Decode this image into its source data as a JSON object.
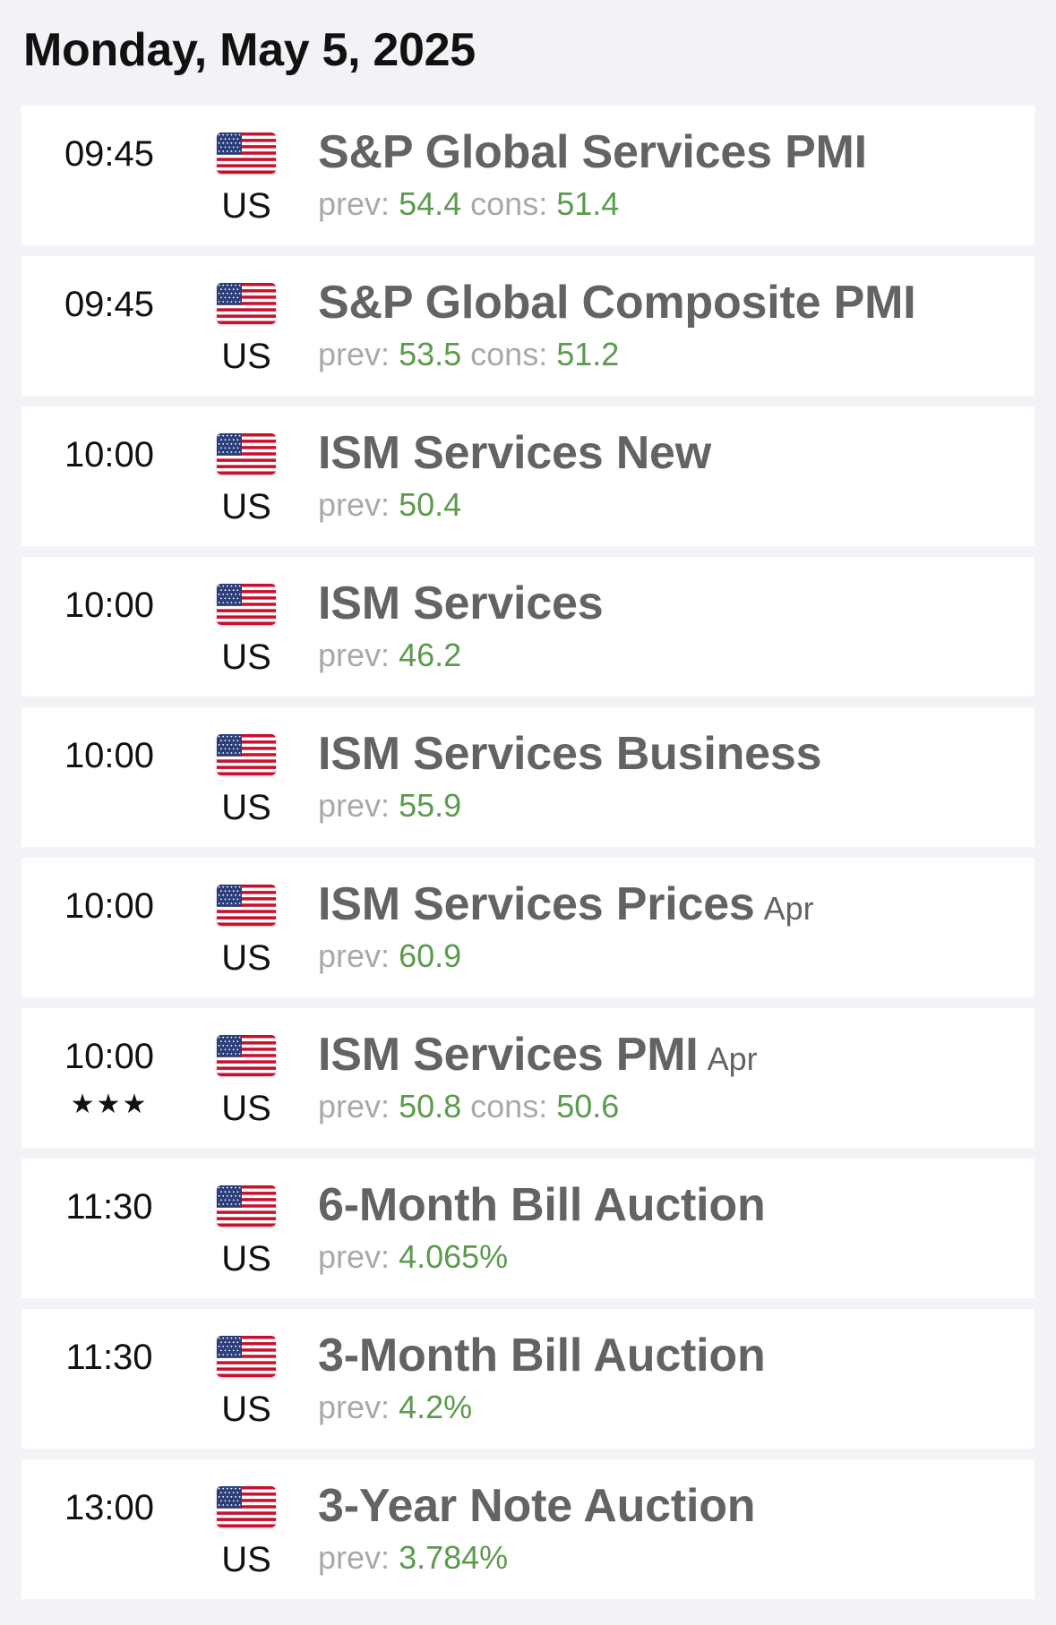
{
  "header": {
    "date": "Monday, May 5, 2025"
  },
  "colors": {
    "background": "#f2f2f7",
    "card": "#ffffff",
    "event_name": "#636366",
    "label": "#a8a8ad",
    "value": "#5c9a4d"
  },
  "labels": {
    "prev": "prev:",
    "cons": "cons:"
  },
  "events": [
    {
      "time": "09:45",
      "stars": "",
      "country": "US",
      "flag_icon": "us-flag-icon",
      "name": "S&P Global Services PMI",
      "period": "",
      "prev": "54.4",
      "cons": "51.4"
    },
    {
      "time": "09:45",
      "stars": "",
      "country": "US",
      "flag_icon": "us-flag-icon",
      "name": "S&P Global Composite PMI",
      "period": "",
      "prev": "53.5",
      "cons": "51.2"
    },
    {
      "time": "10:00",
      "stars": "",
      "country": "US",
      "flag_icon": "us-flag-icon",
      "name": "ISM Services New",
      "period": "",
      "prev": "50.4",
      "cons": ""
    },
    {
      "time": "10:00",
      "stars": "",
      "country": "US",
      "flag_icon": "us-flag-icon",
      "name": "ISM Services",
      "period": "",
      "prev": "46.2",
      "cons": ""
    },
    {
      "time": "10:00",
      "stars": "",
      "country": "US",
      "flag_icon": "us-flag-icon",
      "name": "ISM Services Business",
      "period": "",
      "prev": "55.9",
      "cons": ""
    },
    {
      "time": "10:00",
      "stars": "",
      "country": "US",
      "flag_icon": "us-flag-icon",
      "name": "ISM Services Prices",
      "period": "Apr",
      "prev": "60.9",
      "cons": ""
    },
    {
      "time": "10:00",
      "stars": "★★★",
      "country": "US",
      "flag_icon": "us-flag-icon",
      "name": "ISM Services PMI",
      "period": "Apr",
      "prev": "50.8",
      "cons": "50.6"
    },
    {
      "time": "11:30",
      "stars": "",
      "country": "US",
      "flag_icon": "us-flag-icon",
      "name": "6-Month Bill Auction",
      "period": "",
      "prev": "4.065%",
      "cons": ""
    },
    {
      "time": "11:30",
      "stars": "",
      "country": "US",
      "flag_icon": "us-flag-icon",
      "name": "3-Month Bill Auction",
      "period": "",
      "prev": "4.2%",
      "cons": ""
    },
    {
      "time": "13:00",
      "stars": "",
      "country": "US",
      "flag_icon": "us-flag-icon",
      "name": "3-Year Note Auction",
      "period": "",
      "prev": "3.784%",
      "cons": ""
    }
  ]
}
